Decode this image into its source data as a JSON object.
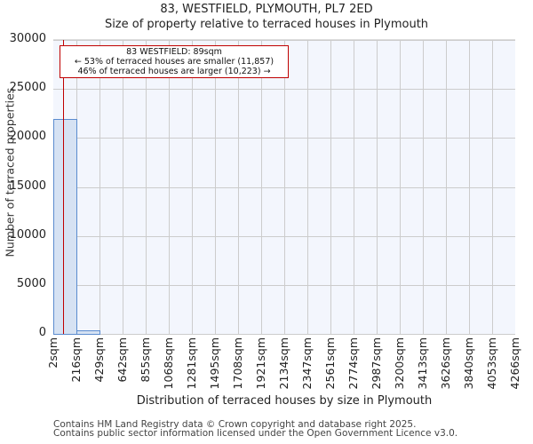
{
  "header": {
    "title": "83, WESTFIELD, PLYMOUTH, PL7 2ED",
    "subtitle": "Size of property relative to terraced houses in Plymouth"
  },
  "annotation": {
    "line1": "83 WESTFIELD: 89sqm",
    "line2": "← 53% of terraced houses are smaller (11,857)",
    "line3": "46% of terraced houses are larger (10,223) →"
  },
  "axes": {
    "ylabel": "Number of terraced properties",
    "xlabel": "Distribution of terraced houses by size in Plymouth",
    "yticks": [
      "0",
      "5000",
      "10000",
      "15000",
      "20000",
      "25000",
      "30000"
    ],
    "xticks": [
      "2sqm",
      "216sqm",
      "429sqm",
      "642sqm",
      "855sqm",
      "1068sqm",
      "1281sqm",
      "1495sqm",
      "1708sqm",
      "1921sqm",
      "2134sqm",
      "2347sqm",
      "2561sqm",
      "2774sqm",
      "2987sqm",
      "3200sqm",
      "3413sqm",
      "3626sqm",
      "3840sqm",
      "4053sqm",
      "4266sqm"
    ]
  },
  "footer": {
    "line1": "Contains HM Land Registry data © Crown copyright and database right 2025.",
    "line2": "Contains public sector information licensed under the Open Government Licence v3.0."
  },
  "colors": {
    "bar_fill": "#d6e2f3",
    "bar_edge": "#5b8ccf",
    "marker": "#c00000",
    "plot_bg": "#f3f6fd"
  },
  "chart_data": {
    "type": "bar",
    "title": "83, WESTFIELD, PLYMOUTH, PL7 2ED",
    "subtitle": "Size of property relative to terraced houses in Plymouth",
    "xlabel": "Distribution of terraced houses by size in Plymouth",
    "ylabel": "Number of terraced properties",
    "categories": [
      "2sqm",
      "216sqm",
      "429sqm",
      "642sqm",
      "855sqm",
      "1068sqm",
      "1281sqm",
      "1495sqm",
      "1708sqm",
      "1921sqm",
      "2134sqm",
      "2347sqm",
      "2561sqm",
      "2774sqm",
      "2987sqm",
      "3200sqm",
      "3413sqm",
      "3626sqm",
      "3840sqm",
      "4053sqm"
    ],
    "bin_edges": [
      2,
      216,
      429,
      642,
      855,
      1068,
      1281,
      1495,
      1708,
      1921,
      2134,
      2347,
      2561,
      2774,
      2987,
      3200,
      3413,
      3626,
      3840,
      4053,
      4266
    ],
    "values": [
      21900,
      360,
      0,
      0,
      0,
      0,
      0,
      0,
      0,
      0,
      0,
      0,
      0,
      0,
      0,
      0,
      0,
      0,
      0,
      0
    ],
    "ylim": [
      0,
      30000
    ],
    "yticks": [
      0,
      5000,
      10000,
      15000,
      20000,
      25000,
      30000
    ],
    "grid": true,
    "marker": {
      "x": 89,
      "label": "83 WESTFIELD: 89sqm",
      "smaller_pct": 53,
      "smaller_count": 11857,
      "larger_pct": 46,
      "larger_count": 10223
    }
  }
}
